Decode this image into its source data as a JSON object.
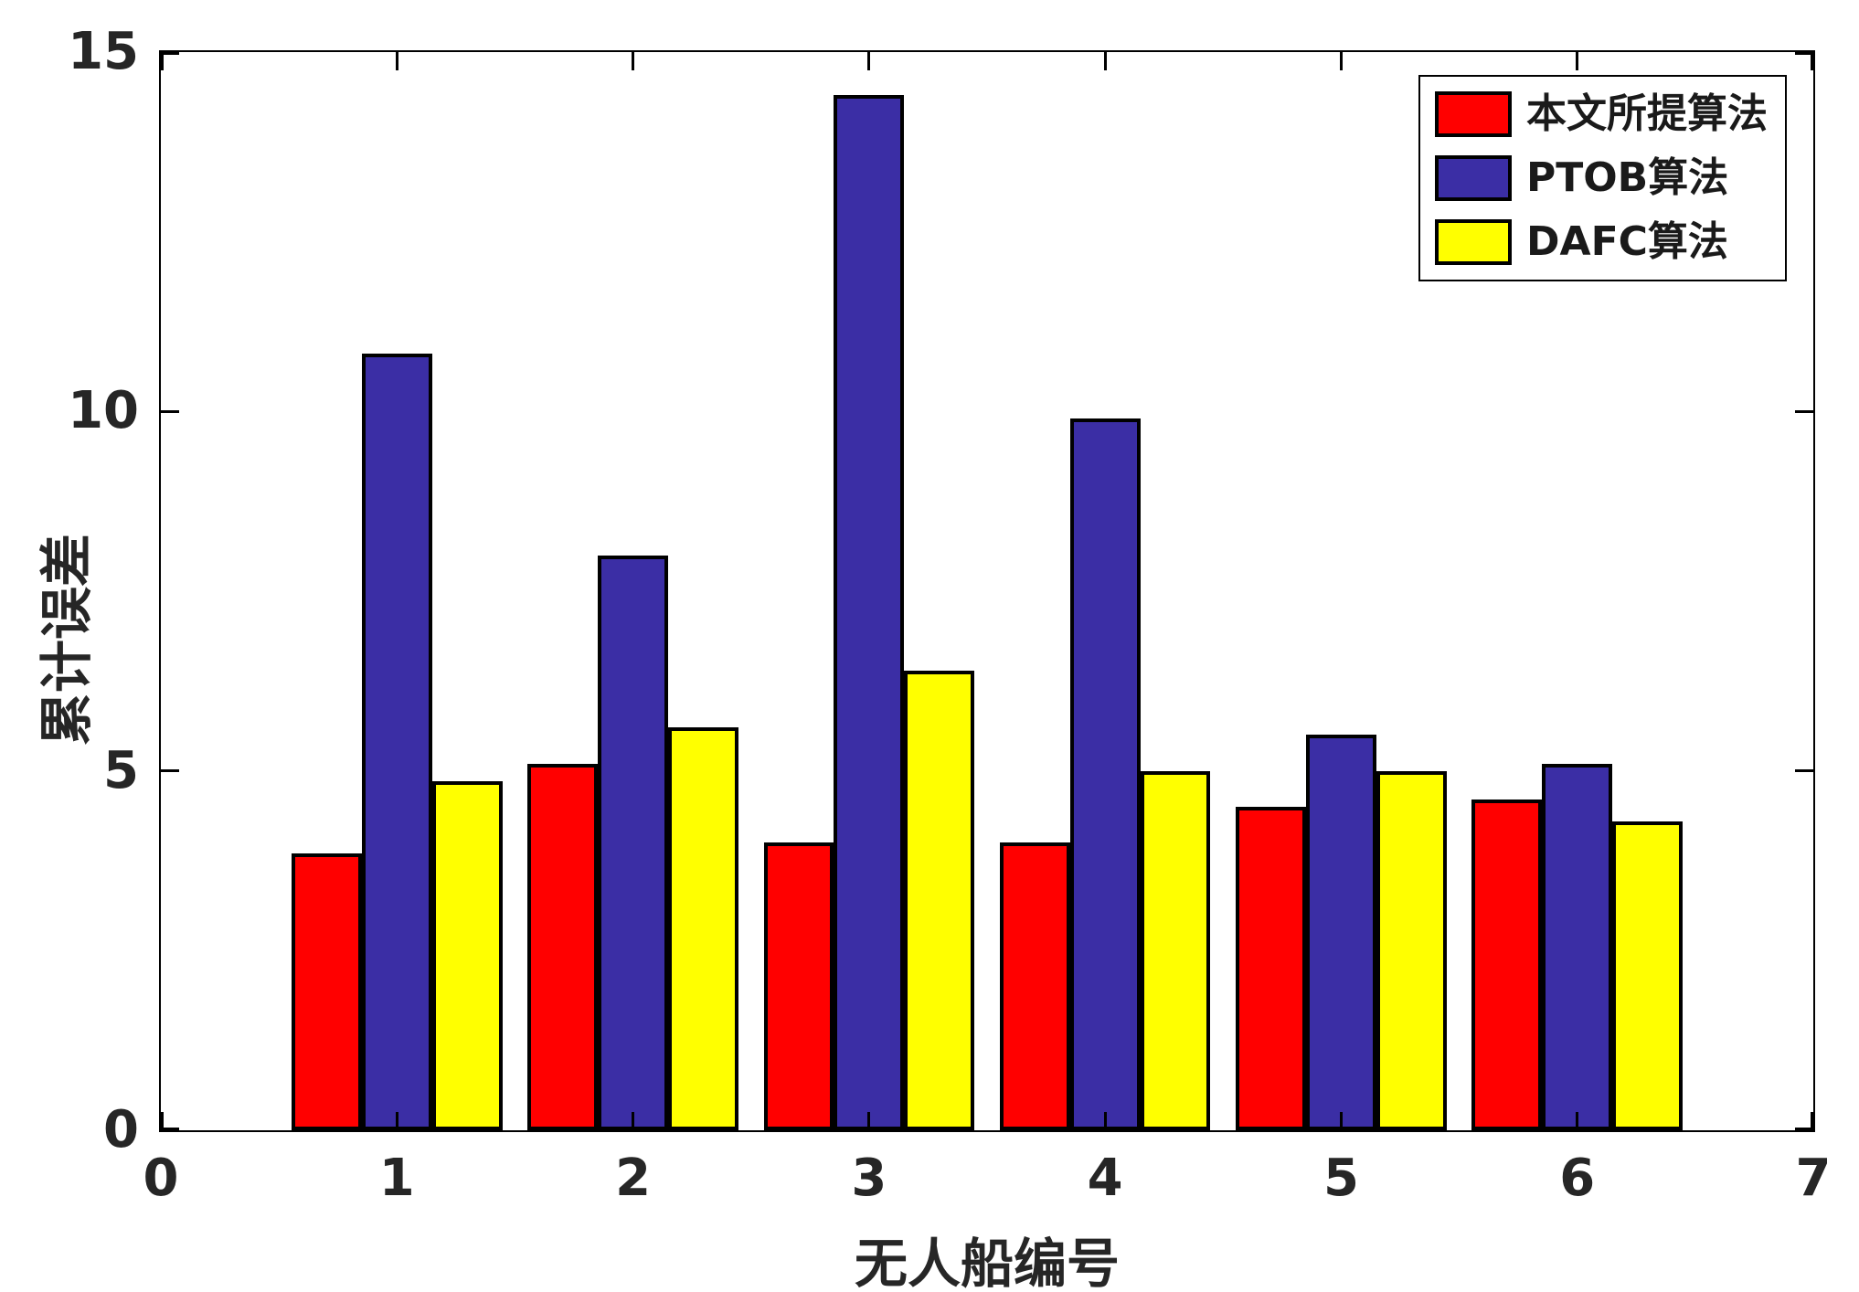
{
  "figure": {
    "background": "#ffffff",
    "axis_color": "#000000",
    "text_color": "#262626"
  },
  "chart_data": {
    "type": "bar",
    "title": "",
    "xlabel": "无人船编号",
    "ylabel": "累计误差",
    "categories": [
      1,
      2,
      3,
      4,
      5,
      6
    ],
    "series": [
      {
        "name": "本文所提算法",
        "color": "#ff0000",
        "values": [
          3.85,
          5.1,
          4.0,
          4.0,
          4.5,
          4.6
        ]
      },
      {
        "name": "PTOB算法",
        "color": "#3b2ea5",
        "values": [
          10.8,
          8.0,
          14.4,
          9.9,
          5.5,
          5.1
        ]
      },
      {
        "name": "DAFC算法",
        "color": "#ffff00",
        "values": [
          4.85,
          5.6,
          6.4,
          5.0,
          5.0,
          4.3
        ]
      }
    ],
    "xlim": [
      0,
      7
    ],
    "ylim": [
      0,
      15
    ],
    "xticks": [
      0,
      1,
      2,
      3,
      4,
      5,
      6,
      7
    ],
    "yticks": [
      0,
      5,
      10,
      15
    ],
    "grid": false,
    "legend_position": "top-right",
    "bar_edge_color": "#000000",
    "bar_width_units": 0.2975
  }
}
